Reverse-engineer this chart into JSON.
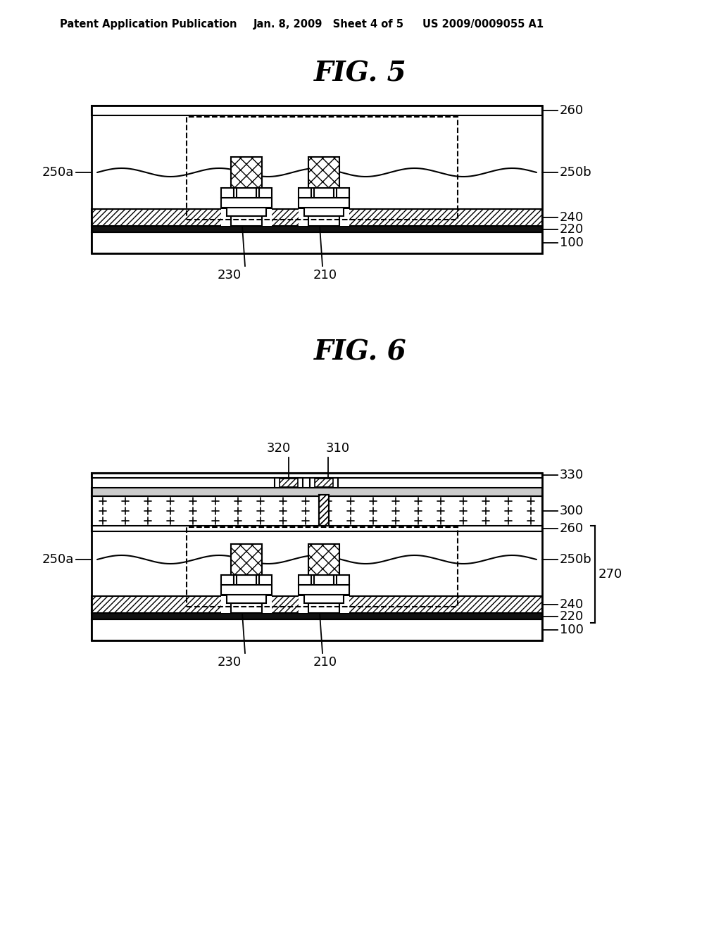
{
  "bg_color": "#ffffff",
  "line_color": "#000000",
  "header_left": "Patent Application Publication",
  "header_mid": "Jan. 8, 2009   Sheet 4 of 5",
  "header_right": "US 2009/0009055 A1",
  "fig5_title": "FIG. 5",
  "fig6_title": "FIG. 6"
}
